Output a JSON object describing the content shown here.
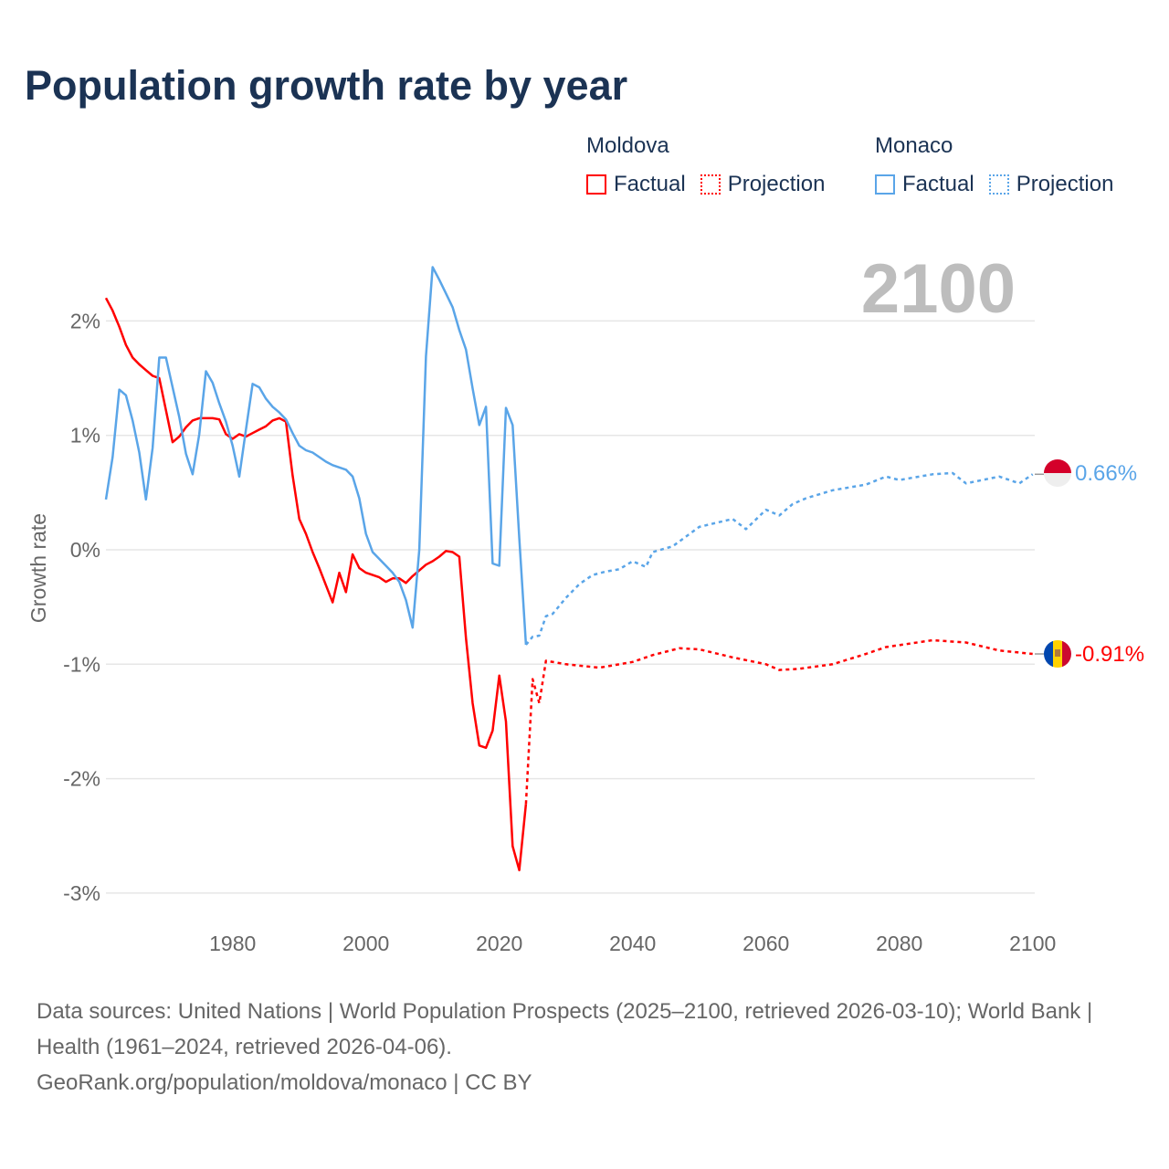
{
  "title": "Population growth rate by year",
  "legend": {
    "groups": [
      {
        "name": "Moldova",
        "color": "#ff0000",
        "factual": "Factual",
        "projection": "Projection"
      },
      {
        "name": "Monaco",
        "color": "#5aa5e8",
        "factual": "Factual",
        "projection": "Projection"
      }
    ]
  },
  "year_watermark": "2100",
  "end_labels": {
    "monaco": "0.66%",
    "moldova": "-0.91%"
  },
  "sources": {
    "line1": "Data sources: United Nations | World Population Prospects (2025–2100, retrieved 2026-03-10); World Bank | Health (1961–2024, retrieved 2026-04-06).",
    "line2": "GeoRank.org/population/moldova/monaco | CC BY"
  },
  "chart_data": {
    "type": "line",
    "title": "Population growth rate by year",
    "xlabel": "",
    "ylabel": "Growth rate",
    "xlim": [
      1961,
      2100
    ],
    "ylim": [
      -3.3,
      2.7
    ],
    "x_ticks": [
      1980,
      2000,
      2020,
      2040,
      2060,
      2080,
      2100
    ],
    "x_tick_labels": [
      "1980",
      "2000",
      "2020",
      "2040",
      "2060",
      "2080",
      "2100"
    ],
    "y_ticks": [
      2,
      1,
      0,
      -1,
      -2,
      -3
    ],
    "y_tick_labels": [
      "2%",
      "1%",
      "0%",
      "-1%",
      "-2%",
      "-3%"
    ],
    "grid": true,
    "legend_position": "top-right",
    "series": [
      {
        "name": "Moldova",
        "kind": "factual",
        "color": "#ff0000",
        "x": [
          1961,
          1962,
          1963,
          1964,
          1965,
          1966,
          1967,
          1968,
          1969,
          1970,
          1971,
          1972,
          1973,
          1974,
          1975,
          1976,
          1977,
          1978,
          1979,
          1980,
          1981,
          1982,
          1983,
          1984,
          1985,
          1986,
          1987,
          1988,
          1989,
          1990,
          1991,
          1992,
          1993,
          1994,
          1995,
          1996,
          1997,
          1998,
          1999,
          2000,
          2001,
          2002,
          2003,
          2004,
          2005,
          2006,
          2007,
          2008,
          2009,
          2010,
          2011,
          2012,
          2013,
          2014,
          2015,
          2016,
          2017,
          2018,
          2019,
          2020,
          2021,
          2022,
          2023,
          2024
        ],
        "y": [
          2.2,
          2.09,
          1.95,
          1.79,
          1.68,
          1.62,
          1.57,
          1.52,
          1.5,
          1.22,
          0.94,
          0.99,
          1.07,
          1.13,
          1.15,
          1.15,
          1.15,
          1.14,
          1.01,
          0.97,
          1.01,
          0.99,
          1.02,
          1.05,
          1.08,
          1.13,
          1.15,
          1.12,
          0.65,
          0.27,
          0.14,
          -0.02,
          -0.16,
          -0.31,
          -0.46,
          -0.2,
          -0.37,
          -0.04,
          -0.16,
          -0.2,
          -0.22,
          -0.24,
          -0.28,
          -0.25,
          -0.25,
          -0.29,
          -0.23,
          -0.18,
          -0.13,
          -0.1,
          -0.06,
          -0.01,
          -0.02,
          -0.06,
          -0.77,
          -1.34,
          -1.71,
          -1.73,
          -1.58,
          -1.1,
          -1.5,
          -2.59,
          -2.8,
          -2.22
        ]
      },
      {
        "name": "Moldova",
        "kind": "projection",
        "color": "#ff0000",
        "x": [
          2024,
          2025,
          2026,
          2027,
          2030,
          2035,
          2040,
          2043,
          2047,
          2050,
          2055,
          2060,
          2062,
          2065,
          2070,
          2075,
          2078,
          2085,
          2090,
          2095,
          2100
        ],
        "y": [
          -2.22,
          -1.13,
          -1.34,
          -0.97,
          -1.0,
          -1.03,
          -0.98,
          -0.92,
          -0.86,
          -0.87,
          -0.94,
          -1.0,
          -1.05,
          -1.04,
          -1.0,
          -0.91,
          -0.85,
          -0.79,
          -0.81,
          -0.88,
          -0.91
        ]
      },
      {
        "name": "Monaco",
        "kind": "factual",
        "color": "#5aa5e8",
        "x": [
          1961,
          1962,
          1963,
          1964,
          1965,
          1966,
          1967,
          1968,
          1969,
          1970,
          1971,
          1972,
          1973,
          1974,
          1975,
          1976,
          1977,
          1978,
          1979,
          1980,
          1981,
          1982,
          1983,
          1984,
          1985,
          1986,
          1987,
          1988,
          1989,
          1990,
          1991,
          1992,
          1993,
          1994,
          1995,
          1996,
          1997,
          1998,
          1999,
          2000,
          2001,
          2002,
          2003,
          2004,
          2005,
          2006,
          2007,
          2008,
          2009,
          2010,
          2011,
          2012,
          2013,
          2014,
          2015,
          2016,
          2017,
          2018,
          2019,
          2020,
          2021,
          2022,
          2023,
          2024
        ],
        "y": [
          0.44,
          0.81,
          1.4,
          1.35,
          1.13,
          0.85,
          0.44,
          0.89,
          1.68,
          1.68,
          1.42,
          1.16,
          0.84,
          0.66,
          1.01,
          1.56,
          1.46,
          1.28,
          1.12,
          0.91,
          0.64,
          1.05,
          1.45,
          1.42,
          1.32,
          1.25,
          1.2,
          1.14,
          1.02,
          0.91,
          0.87,
          0.85,
          0.81,
          0.77,
          0.74,
          0.72,
          0.7,
          0.64,
          0.45,
          0.14,
          -0.02,
          -0.08,
          -0.14,
          -0.2,
          -0.28,
          -0.44,
          -0.68,
          0.0,
          1.69,
          2.47,
          2.36,
          2.24,
          2.12,
          1.92,
          1.75,
          1.41,
          1.09,
          1.25,
          -0.12,
          -0.14,
          1.24,
          1.09,
          0.1,
          -0.83
        ]
      },
      {
        "name": "Monaco",
        "kind": "projection",
        "color": "#5aa5e8",
        "x": [
          2024,
          2025,
          2026,
          2027,
          2028,
          2029,
          2030,
          2032,
          2034,
          2036,
          2038,
          2040,
          2042,
          2043,
          2046,
          2050,
          2055,
          2057,
          2060,
          2062,
          2064,
          2066,
          2070,
          2075,
          2078,
          2080,
          2085,
          2088,
          2090,
          2095,
          2098,
          2100
        ],
        "y": [
          -0.83,
          -0.76,
          -0.75,
          -0.58,
          -0.56,
          -0.49,
          -0.42,
          -0.3,
          -0.22,
          -0.19,
          -0.17,
          -0.1,
          -0.15,
          -0.02,
          0.03,
          0.2,
          0.27,
          0.18,
          0.35,
          0.3,
          0.4,
          0.45,
          0.52,
          0.57,
          0.64,
          0.61,
          0.66,
          0.67,
          0.58,
          0.64,
          0.58,
          0.66
        ]
      }
    ]
  }
}
